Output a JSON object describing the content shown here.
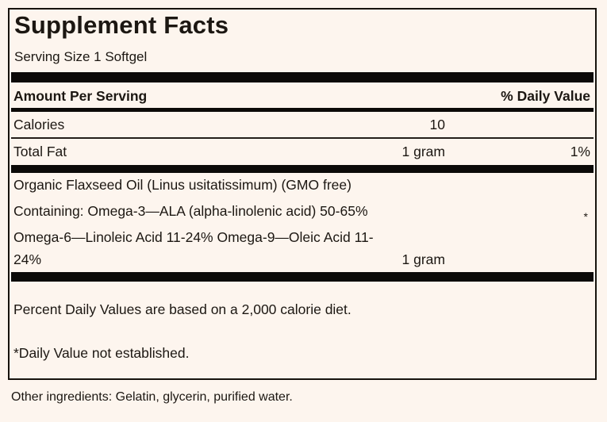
{
  "label": {
    "title": "Supplement Facts",
    "serving_size": "Serving Size 1 Softgel",
    "header": {
      "amount_per_serving": "Amount Per Serving",
      "daily_value": "% Daily Value"
    },
    "rows": [
      {
        "name": "Calories",
        "amount": "10",
        "dv": ""
      },
      {
        "name": "Total Fat",
        "amount": "1 gram",
        "dv": "1%"
      }
    ],
    "ingredient_block": {
      "lines": [
        "Organic Flaxseed Oil (Linus usitatissimum) (GMO free)",
        "Containing: Omega-3—ALA (alpha-linolenic acid) 50-65%",
        "Omega-6—Linoleic Acid 11-24% Omega-9—Oleic Acid 11-",
        "24%"
      ],
      "amount": "1 gram",
      "dv_marker": "*"
    },
    "footnotes": [
      "Percent Daily Values are based on a 2,000 calorie diet.",
      "*Daily Value not established."
    ],
    "other_ingredients": "Other ingredients: Gelatin, glycerin, purified water."
  },
  "colors": {
    "background": "#fdf5ee",
    "text": "#1c1712",
    "rule": "#0c0a08"
  }
}
